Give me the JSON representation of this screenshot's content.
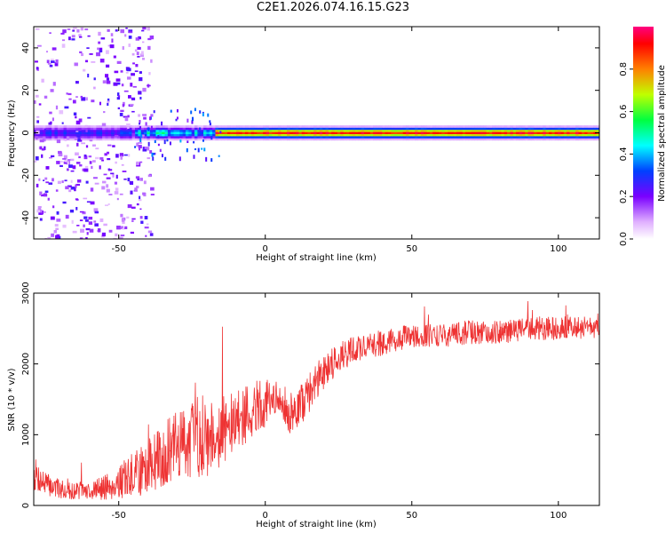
{
  "title": "C2E1.2026.074.16.15.G23",
  "colors": {
    "snr_line": "#ee3333",
    "frame": "#000000"
  },
  "chart_data": [
    {
      "type": "heatmap",
      "title": "C2E1.2026.074.16.15.G23",
      "xlabel": "Height of straight line (km)",
      "ylabel": "Frequency (Hz)",
      "xlim": [
        -79,
        114
      ],
      "ylim": [
        -50,
        50
      ],
      "xticks": [
        -50,
        0,
        50,
        100
      ],
      "xtick_labels": [
        "-50",
        "0",
        "50",
        "100"
      ],
      "yticks": [
        -40,
        -20,
        0,
        20,
        40
      ],
      "ytick_labels": [
        "-40",
        "-20",
        "0",
        "20",
        "40"
      ],
      "colorbar": {
        "label": "Normalized spectral amplitude",
        "range": [
          0,
          1
        ],
        "ticks": [
          0.0,
          0.2,
          0.4,
          0.6,
          0.8
        ],
        "tick_labels": [
          "0.0",
          "0.2",
          "0.4",
          "0.6",
          "0.8"
        ],
        "colormap": "rainbow"
      },
      "description_data": {
        "line_frequency_hz": 0,
        "line_halfwidth_hz": 2.5,
        "noise_region_x": [
          -79,
          -45
        ],
        "transition_region_x": [
          -45,
          -18
        ],
        "clean_region_x": [
          -18,
          114
        ]
      }
    },
    {
      "type": "line",
      "title": "",
      "xlabel": "Height of straight line (km)",
      "ylabel": "SNR (10 * v/v)",
      "xlim": [
        -79,
        114
      ],
      "ylim": [
        0,
        3000
      ],
      "xticks": [
        -50,
        0,
        50,
        100
      ],
      "xtick_labels": [
        "-50",
        "0",
        "50",
        "100"
      ],
      "yticks": [
        0,
        1000,
        2000,
        3000
      ],
      "ytick_labels": [
        "0",
        "1000",
        "2000",
        "3000"
      ],
      "series": [
        {
          "name": "SNR",
          "envelope_x": [
            -79,
            -75,
            -70,
            -65,
            -60,
            -55,
            -50,
            -45,
            -40,
            -35,
            -30,
            -25,
            -20,
            -15,
            -10,
            -5,
            0,
            5,
            10,
            15,
            20,
            25,
            30,
            40,
            50,
            60,
            70,
            80,
            90,
            100,
            105,
            110,
            114
          ],
          "envelope_mean": [
            450,
            300,
            230,
            200,
            210,
            250,
            330,
            430,
            550,
            700,
            850,
            950,
            1000,
            1050,
            1150,
            1350,
            1450,
            1450,
            1250,
            1600,
            1900,
            2100,
            2200,
            2300,
            2400,
            2400,
            2450,
            2450,
            2500,
            2500,
            2550,
            2500,
            2550
          ],
          "envelope_spread": [
            250,
            180,
            130,
            120,
            140,
            180,
            240,
            320,
            380,
            450,
            500,
            550,
            600,
            500,
            450,
            400,
            350,
            300,
            320,
            280,
            250,
            220,
            200,
            180,
            170,
            170,
            170,
            170,
            170,
            170,
            170,
            170,
            170
          ],
          "noise_seed": 7
        }
      ]
    }
  ]
}
